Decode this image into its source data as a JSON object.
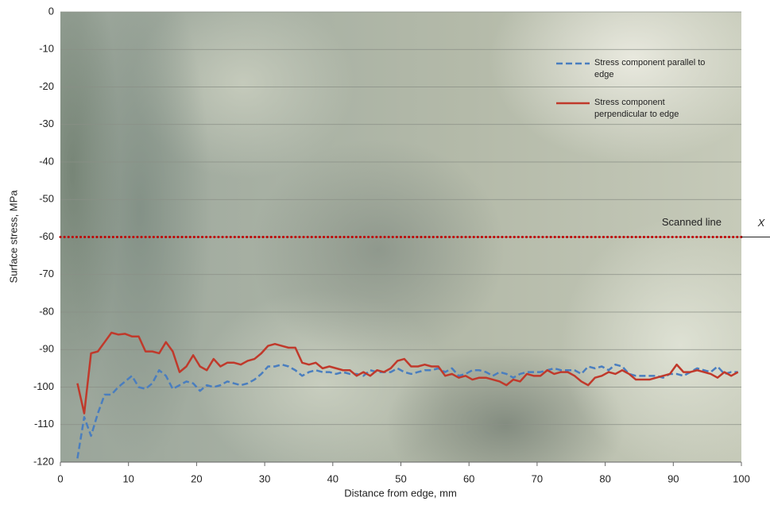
{
  "chart_data": {
    "type": "line",
    "xlabel": "Distance from edge, mm",
    "ylabel": "Surface stress, MPa",
    "xlim": [
      0,
      100
    ],
    "ylim": [
      -120,
      0
    ],
    "xticks": [
      0,
      10,
      20,
      30,
      40,
      50,
      60,
      70,
      80,
      90,
      100
    ],
    "yticks": [
      0,
      -10,
      -20,
      -30,
      -40,
      -50,
      -60,
      -70,
      -80,
      -90,
      -100,
      -110,
      -120
    ],
    "grid": true,
    "legend": "upper right",
    "reference_line": {
      "y": -60,
      "label": "Scanned line",
      "color": "#c00000"
    },
    "marker_label": "X",
    "x": [
      2.5,
      3.5,
      4.5,
      5.5,
      6.5,
      7.5,
      8.5,
      9.5,
      10.5,
      11.5,
      12.5,
      13.5,
      14.5,
      15.5,
      16.5,
      17.5,
      18.5,
      19.5,
      20.5,
      21.5,
      22.5,
      23.5,
      24.5,
      25.5,
      26.5,
      27.5,
      28.5,
      29.5,
      30.5,
      31.5,
      32.5,
      33.5,
      34.5,
      35.5,
      36.5,
      37.5,
      38.5,
      39.5,
      40.5,
      41.5,
      42.5,
      43.5,
      44.5,
      45.5,
      46.5,
      47.5,
      48.5,
      49.5,
      50.5,
      51.5,
      52.5,
      53.5,
      54.5,
      55.5,
      56.5,
      57.5,
      58.5,
      59.5,
      60.5,
      61.5,
      62.5,
      63.5,
      64.5,
      65.5,
      66.5,
      67.5,
      68.5,
      69.5,
      70.5,
      71.5,
      72.5,
      73.5,
      74.5,
      75.5,
      76.5,
      77.5,
      78.5,
      79.5,
      80.5,
      81.5,
      82.5,
      83.5,
      84.5,
      85.5,
      86.5,
      87.5,
      88.5,
      89.5,
      90.5,
      91.5,
      92.5,
      93.5,
      94.5,
      95.5,
      96.5,
      97.5,
      98.5,
      99.5
    ],
    "series": [
      {
        "name": "Stress component parallel to edge",
        "color": "#4a7ebf",
        "dash": true,
        "values": [
          -119,
          -108,
          -113,
          -107,
          -102,
          -102,
          -100,
          -98.5,
          -97,
          -100,
          -100.5,
          -99,
          -95.5,
          -97,
          -100.5,
          -99.5,
          -98.5,
          -99,
          -101,
          -99.5,
          -100,
          -99.5,
          -98.5,
          -99,
          -99.5,
          -99,
          -98,
          -96.5,
          -94.5,
          -94.5,
          -94,
          -94.5,
          -95.5,
          -97,
          -96,
          -95.5,
          -96,
          -96,
          -96.5,
          -96,
          -96.5,
          -96.5,
          -97,
          -95.5,
          -96,
          -96,
          -96,
          -95,
          -96,
          -96.5,
          -96,
          -95.5,
          -95.5,
          -95,
          -96,
          -95,
          -97,
          -96.5,
          -95.5,
          -95.5,
          -96,
          -97,
          -96,
          -96.5,
          -97.5,
          -96.5,
          -96,
          -96,
          -96,
          -95.5,
          -95,
          -95.5,
          -95.5,
          -95.5,
          -96.5,
          -94.5,
          -95,
          -94.5,
          -95.5,
          -94,
          -94.5,
          -96.5,
          -97,
          -97,
          -97,
          -97,
          -97.5,
          -96.5,
          -96.5,
          -97,
          -96,
          -95,
          -95.5,
          -96,
          -94.5,
          -96.5,
          -96,
          -96
        ]
      },
      {
        "name": "Stress component perpendicular to edge",
        "color": "#c0392b",
        "dash": false,
        "values": [
          -99,
          -107,
          -91,
          -90.5,
          -88,
          -85.5,
          -86,
          -85.8,
          -86.5,
          -86.5,
          -90.5,
          -90.5,
          -91,
          -88,
          -90.5,
          -96,
          -94.5,
          -91.5,
          -94.5,
          -95.5,
          -92.5,
          -94.5,
          -93.5,
          -93.5,
          -94,
          -93,
          -92.5,
          -91,
          -89,
          -88.5,
          -89,
          -89.5,
          -89.5,
          -93.5,
          -94,
          -93.5,
          -95,
          -94.5,
          -95,
          -95.5,
          -95.5,
          -97,
          -96,
          -97,
          -95.5,
          -96,
          -95,
          -93,
          -92.5,
          -94.5,
          -94.5,
          -94,
          -94.5,
          -94.5,
          -97,
          -96.5,
          -97.5,
          -97,
          -98,
          -97.5,
          -97.5,
          -98,
          -98.5,
          -99.5,
          -98,
          -98.5,
          -96.5,
          -97,
          -97,
          -95.5,
          -96.5,
          -96,
          -96,
          -97,
          -98.5,
          -99.5,
          -97.5,
          -97,
          -96,
          -96.5,
          -95.5,
          -96.5,
          -98,
          -98,
          -98,
          -97.5,
          -97,
          -96.5,
          -94,
          -96,
          -96,
          -95.5,
          -96,
          -96.5,
          -97.5,
          -96,
          -97,
          -96
        ]
      }
    ]
  }
}
